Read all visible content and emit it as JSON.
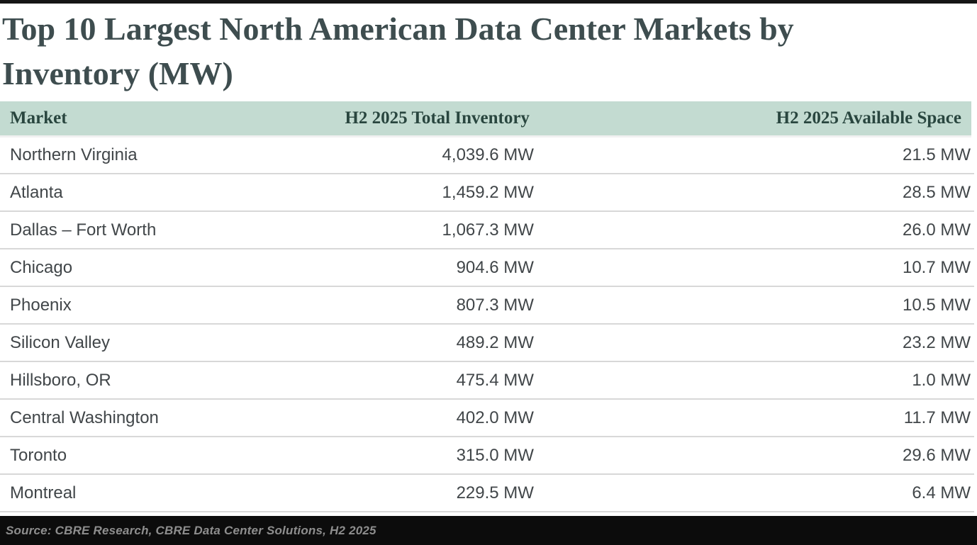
{
  "title": "Top 10 Largest North American Data Center Markets by Inventory (MW)",
  "table": {
    "columns": [
      "Market",
      "H2 2025 Total Inventory",
      "H2 2025 Available Space"
    ],
    "rows": [
      {
        "market": "Northern Virginia",
        "inventory": "4,039.6 MW",
        "available": "21.5 MW"
      },
      {
        "market": "Atlanta",
        "inventory": "1,459.2 MW",
        "available": "28.5 MW"
      },
      {
        "market": "Dallas – Fort Worth",
        "inventory": "1,067.3 MW",
        "available": "26.0 MW"
      },
      {
        "market": "Chicago",
        "inventory": "904.6 MW",
        "available": "10.7 MW"
      },
      {
        "market": "Phoenix",
        "inventory": "807.3 MW",
        "available": "10.5 MW"
      },
      {
        "market": "Silicon Valley",
        "inventory": "489.2 MW",
        "available": "23.2 MW"
      },
      {
        "market": "Hillsboro, OR",
        "inventory": "475.4 MW",
        "available": "1.0 MW"
      },
      {
        "market": "Central Washington",
        "inventory": "402.0 MW",
        "available": "11.7 MW"
      },
      {
        "market": "Toronto",
        "inventory": "315.0 MW",
        "available": "29.6 MW"
      },
      {
        "market": "Montreal",
        "inventory": "229.5 MW",
        "available": "6.4 MW"
      }
    ]
  },
  "source": "Source: CBRE Research, CBRE Data Center Solutions, H2 2025",
  "colors": {
    "header_bg": "#c3dbd1",
    "header_text": "#29463f",
    "title_text": "#3e4d4f",
    "body_text": "#414649",
    "row_divider": "#d8d8d8",
    "footer_bg": "#0c0c0c",
    "footer_text": "#8e8e8e",
    "top_bar": "#161616"
  },
  "chart_data": {
    "type": "table",
    "title": "Top 10 Largest North American Data Center Markets by Inventory (MW)",
    "columns": [
      "Market",
      "H2 2025 Total Inventory",
      "H2 2025 Available Space"
    ],
    "unit": "MW",
    "rows": [
      [
        "Northern Virginia",
        4039.6,
        21.5
      ],
      [
        "Atlanta",
        1459.2,
        28.5
      ],
      [
        "Dallas – Fort Worth",
        1067.3,
        26.0
      ],
      [
        "Chicago",
        904.6,
        10.7
      ],
      [
        "Phoenix",
        807.3,
        10.5
      ],
      [
        "Silicon Valley",
        489.2,
        23.2
      ],
      [
        "Hillsboro, OR",
        475.4,
        1.0
      ],
      [
        "Central Washington",
        402.0,
        11.7
      ],
      [
        "Toronto",
        315.0,
        29.6
      ],
      [
        "Montreal",
        229.5,
        6.4
      ]
    ],
    "source": "Source: CBRE Research, CBRE Data Center Solutions, H2 2025"
  }
}
